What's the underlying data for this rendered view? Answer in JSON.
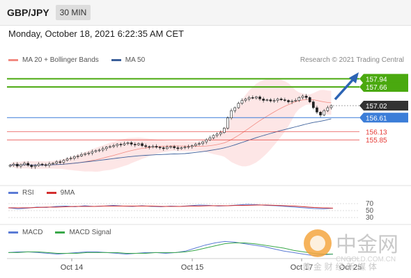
{
  "header": {
    "symbol": "GBP/JPY",
    "timeframe": "30 MIN"
  },
  "datetime": "Monday, October 18, 2021 6:22:35 AM CET",
  "credit": "Research © 2021 Trading Central",
  "legends": {
    "main": [
      {
        "label": "MA 20 + Bollinger Bands",
        "color": "#f28b82"
      },
      {
        "label": "MA 50",
        "color": "#3b5f9a"
      }
    ],
    "rsi": [
      {
        "label": "RSI",
        "color": "#5b7bd5"
      },
      {
        "label": "9MA",
        "color": "#d32f2f"
      }
    ],
    "macd": [
      {
        "label": "MACD",
        "color": "#5b7bd5"
      },
      {
        "label": "MACD Signal",
        "color": "#3aa84a"
      }
    ]
  },
  "colors": {
    "target": "#4aa90f",
    "current": "#333333",
    "support": "#3b7dd8",
    "resistance": "#e53935",
    "arrow": "#2c64b4",
    "band": "#fde2e2"
  },
  "watermark": {
    "brand": "中金网",
    "url": "CNGOLD.COM.CN",
    "tagline": "黄 金 财 经 新 媒 体"
  },
  "chart_data": [
    {
      "type": "candlestick",
      "panel": "price",
      "x_tick_labels": [
        "Oct 14",
        "Oct 15",
        "Oct 17",
        "Oct 25"
      ],
      "levels": [
        {
          "value": 157.94,
          "label": "157.94",
          "kind": "target"
        },
        {
          "value": 157.66,
          "label": "157.66",
          "kind": "target"
        },
        {
          "value": 157.02,
          "label": "157.02",
          "kind": "current"
        },
        {
          "value": 156.61,
          "label": "156.61",
          "kind": "pivot"
        },
        {
          "value": 156.13,
          "label": "156.13",
          "kind": "support"
        },
        {
          "value": 155.85,
          "label": "155.85",
          "kind": "support"
        }
      ],
      "ylim": [
        154.5,
        158.4
      ],
      "close": [
        154.98,
        155.02,
        154.95,
        155.0,
        155.05,
        154.98,
        154.93,
        154.97,
        155.02,
        155.0,
        154.98,
        155.03,
        155.05,
        155.1,
        155.08,
        155.15,
        155.2,
        155.22,
        155.28,
        155.3,
        155.35,
        155.38,
        155.4,
        155.45,
        155.48,
        155.5,
        155.55,
        155.6,
        155.62,
        155.65,
        155.7,
        155.68,
        155.72,
        155.75,
        155.7,
        155.68,
        155.72,
        155.65,
        155.62,
        155.6,
        155.63,
        155.6,
        155.58,
        155.55,
        155.6,
        155.62,
        155.58,
        155.55,
        155.58,
        155.6,
        155.62,
        155.65,
        155.7,
        155.72,
        155.78,
        155.85,
        155.92,
        156.0,
        156.05,
        156.1,
        156.25,
        156.6,
        156.85,
        156.95,
        157.1,
        157.2,
        157.25,
        157.3,
        157.28,
        157.32,
        157.25,
        157.2,
        157.22,
        157.18,
        157.2,
        157.25,
        157.22,
        157.2,
        157.15,
        157.18,
        157.2,
        157.3,
        157.35,
        157.3,
        157.15,
        156.95,
        156.8,
        156.7,
        156.85,
        156.95,
        157.02
      ]
    },
    {
      "type": "line",
      "panel": "rsi",
      "y_tick_labels": [
        "70",
        "50",
        "30"
      ],
      "series": [
        {
          "name": "RSI",
          "values": [
            58,
            55,
            57,
            60,
            59,
            62,
            63,
            61,
            64,
            62,
            63,
            65,
            63,
            62,
            64,
            62,
            61,
            63,
            62,
            64,
            66,
            65,
            63,
            64,
            66,
            68,
            67,
            65,
            64,
            62,
            60,
            58,
            56,
            55,
            57
          ]
        },
        {
          "name": "9MA",
          "values": [
            58,
            58,
            58,
            59,
            60,
            60,
            61,
            62,
            62,
            62,
            63,
            63,
            63,
            63,
            63,
            63,
            62,
            62,
            62,
            63,
            63,
            64,
            64,
            64,
            65,
            65,
            66,
            66,
            65,
            64,
            63,
            61,
            59,
            58,
            57
          ]
        }
      ],
      "ylim": [
        20,
        80
      ]
    },
    {
      "type": "line",
      "panel": "macd",
      "series": [
        {
          "name": "MACD",
          "values": [
            0.02,
            0.03,
            0.03,
            0.02,
            0.01,
            0.0,
            0.01,
            0.02,
            0.03,
            0.03,
            0.02,
            0.01,
            0.0,
            0.01,
            0.02,
            0.02,
            0.01,
            0.02,
            0.04,
            0.08,
            0.12,
            0.15,
            0.17,
            0.16,
            0.14,
            0.12,
            0.1,
            0.07,
            0.04,
            0.02,
            0.0,
            -0.02,
            -0.01,
            0.0
          ]
        },
        {
          "name": "MACD Signal",
          "values": [
            0.02,
            0.02,
            0.03,
            0.03,
            0.02,
            0.01,
            0.01,
            0.01,
            0.02,
            0.02,
            0.02,
            0.02,
            0.01,
            0.01,
            0.01,
            0.02,
            0.02,
            0.02,
            0.03,
            0.05,
            0.08,
            0.11,
            0.14,
            0.15,
            0.15,
            0.14,
            0.12,
            0.1,
            0.08,
            0.05,
            0.03,
            0.01,
            0.0,
            0.0
          ]
        }
      ],
      "ylim": [
        -0.06,
        0.22
      ]
    }
  ]
}
